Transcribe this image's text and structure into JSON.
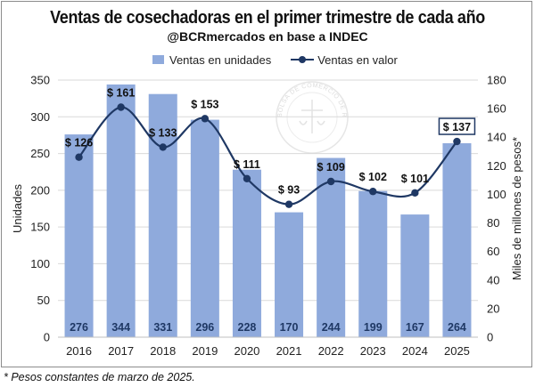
{
  "header": {
    "title": "Ventas de cosechadoras en el primer trimestre de cada año",
    "subtitle": "@BCRmercados en base a INDEC"
  },
  "footnote": "* Pesos constantes de marzo de 2025.",
  "colors": {
    "bars": "#8faadc",
    "line": "#1f3864",
    "grid": "#d9d9d9"
  },
  "watermark": "BOLSA DE COMERCIO DE ROSARIO",
  "chart_data": {
    "type": "bar",
    "categories": [
      "2016",
      "2017",
      "2018",
      "2019",
      "2020",
      "2021",
      "2022",
      "2023",
      "2024",
      "2025"
    ],
    "series": [
      {
        "name": "Ventas en unidades",
        "type": "bar",
        "axis": "left",
        "values": [
          276,
          344,
          331,
          296,
          228,
          170,
          244,
          199,
          167,
          264
        ],
        "labels": [
          "276",
          "344",
          "331",
          "296",
          "228",
          "170",
          "244",
          "199",
          "167",
          "264"
        ]
      },
      {
        "name": "Ventas en valor",
        "type": "line",
        "axis": "right",
        "values": [
          126,
          161,
          133,
          153,
          111,
          93,
          109,
          102,
          101,
          137
        ],
        "labels": [
          "$ 126",
          "$ 161",
          "$ 133",
          "$ 153",
          "$ 111",
          "$ 93",
          "$ 109",
          "$ 102",
          "$ 101",
          "$ 137"
        ]
      }
    ],
    "ylabel": "Unidades",
    "y2label": "Miles de millones de pesos*",
    "ylim": [
      0,
      350
    ],
    "yticks": [
      0,
      50,
      100,
      150,
      200,
      250,
      300,
      350
    ],
    "y2lim": [
      0,
      180
    ],
    "y2ticks": [
      0,
      20,
      40,
      60,
      80,
      100,
      120,
      140,
      160,
      180
    ],
    "grid": true,
    "legend_position": "top",
    "highlighted_label": "$ 137"
  }
}
